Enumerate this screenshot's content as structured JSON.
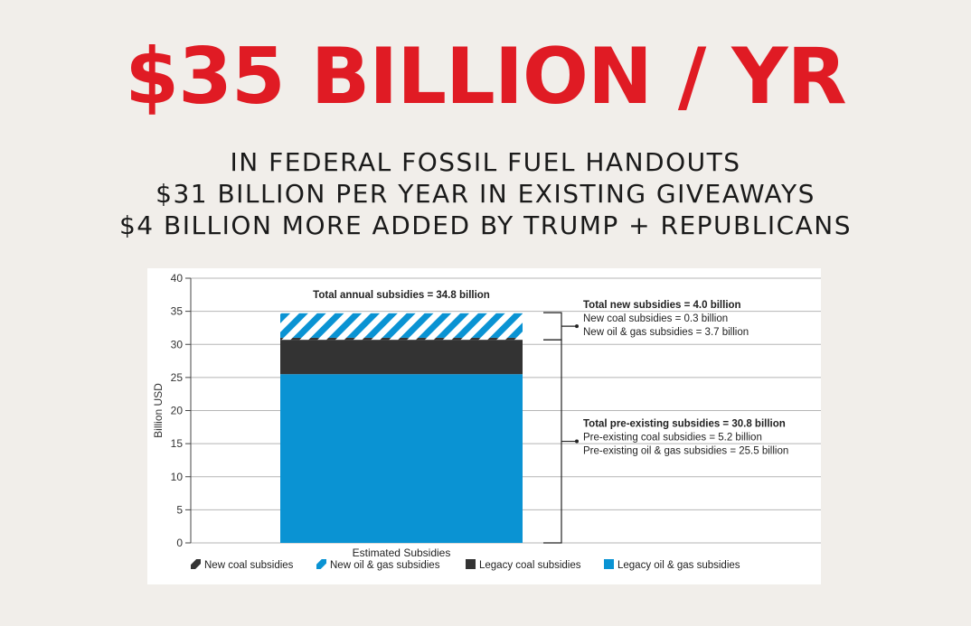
{
  "headline": {
    "text": "$35 BILLION / YR",
    "color": "#e01b24"
  },
  "subheadings": [
    "IN FEDERAL FOSSIL FUEL HANDOUTS",
    "$31 BILLION PER YEAR IN EXISTING GIVEAWAYS",
    "$4 BILLION MORE ADDED BY TRUMP + REPUBLICANS"
  ],
  "chart_data": {
    "type": "bar",
    "stacked": true,
    "categories": [
      "Estimated Subsidies"
    ],
    "ylabel": "Billion USD",
    "ylim": [
      0,
      40
    ],
    "yticks": [
      0,
      5,
      10,
      15,
      20,
      25,
      30,
      35,
      40
    ],
    "grid": true,
    "series": [
      {
        "name": "Legacy oil & gas subsidies",
        "values": [
          25.5
        ],
        "color": "#0a93d3",
        "pattern": "solid"
      },
      {
        "name": "Legacy coal subsidies",
        "values": [
          5.2
        ],
        "color": "#333333",
        "pattern": "solid"
      },
      {
        "name": "New coal subsidies",
        "values": [
          0.3
        ],
        "color": "#333333",
        "pattern": "hatched"
      },
      {
        "name": "New oil & gas subsidies",
        "values": [
          3.7
        ],
        "color": "#0a93d3",
        "pattern": "hatched"
      }
    ],
    "legend_order": [
      "New coal subsidies",
      "New oil & gas subsidies",
      "Legacy coal subsidies",
      "Legacy oil & gas subsidies"
    ],
    "legend_position": "bottom",
    "top_annotation": "Total annual subsidies = 34.8 billion",
    "new_group": {
      "title": "Total new subsidies = 4.0 billion",
      "lines": [
        "New coal subsidies = 0.3 billion",
        "New oil & gas subsidies = 3.7 billion"
      ],
      "range": [
        30.7,
        34.8
      ]
    },
    "existing_group": {
      "title": "Total pre-existing subsidies = 30.8 billion",
      "lines": [
        "Pre-existing coal subsidies = 5.2 billion",
        "Pre-existing oil & gas subsidies = 25.5 billion"
      ],
      "range": [
        0,
        30.7
      ]
    }
  }
}
